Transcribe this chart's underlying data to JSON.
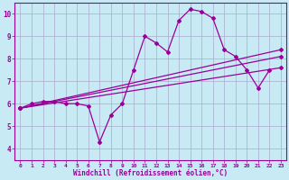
{
  "xlabel": "Windchill (Refroidissement éolien,°C)",
  "x_values": [
    0,
    1,
    2,
    3,
    4,
    5,
    6,
    7,
    8,
    9,
    10,
    11,
    12,
    13,
    14,
    15,
    16,
    17,
    18,
    19,
    20,
    21,
    22,
    23
  ],
  "line1_y": [
    5.8,
    6.0,
    6.1,
    6.1,
    6.0,
    6.0,
    5.9,
    4.3,
    5.5,
    6.0,
    7.5,
    9.0,
    8.7,
    8.3,
    9.7,
    10.2,
    10.1,
    9.8,
    8.4,
    8.1,
    7.5,
    6.7,
    7.5,
    null
  ],
  "line2_y": [
    5.8,
    7.6
  ],
  "line2_x": [
    0,
    23
  ],
  "line3_y": [
    5.8,
    8.1
  ],
  "line3_x": [
    0,
    23
  ],
  "line4_y": [
    5.8,
    8.4
  ],
  "line4_x": [
    0,
    23
  ],
  "line_color": "#990099",
  "bg_color": "#c8eaf4",
  "grid_color": "#aaaacc",
  "ylim": [
    3.5,
    10.5
  ],
  "xlim": [
    -0.5,
    23.5
  ]
}
